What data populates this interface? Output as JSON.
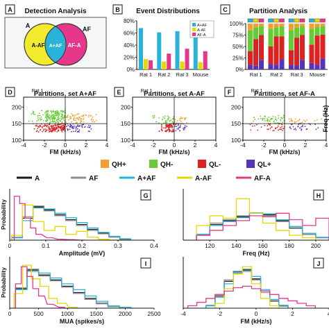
{
  "colors": {
    "A": "#1a1a1a",
    "AF": "#8c8c8c",
    "A_AF": "#2ab3d9",
    "A_minus_AF": "#e6d800",
    "AF_minus_A": "#e6378a",
    "QH_plus": "#f0a030",
    "QH_minus": "#66cc33",
    "QL_minus": "#dd2222",
    "QL_plus": "#5533bb",
    "venn_yellow": "#f2ea2e",
    "venn_cyan": "#2ab3d9",
    "venn_pink": "#e6378a"
  },
  "panels": {
    "A": {
      "letter": "A",
      "title": "Detection Analysis",
      "set_a": "A",
      "set_af": "AF",
      "left": "A-AF",
      "mid": "A+AF",
      "right": "AF-A"
    },
    "B": {
      "letter": "B",
      "title": "Event Distributions"
    },
    "C": {
      "letter": "C",
      "title": "Partition Analysis"
    },
    "D": {
      "letter": "D",
      "title": "Partitions, set A+AF",
      "rat": "Rat 1"
    },
    "E": {
      "letter": "E",
      "title": "Partitions, set A-AF",
      "rat": "Rat 1"
    },
    "F": {
      "letter": "F",
      "title": "Partitions, set AF-A",
      "rat": "Rat 1"
    },
    "G": {
      "letter": "G"
    },
    "H": {
      "letter": "H"
    },
    "I": {
      "letter": "I"
    },
    "J": {
      "letter": "J"
    }
  },
  "legend_quadrants": [
    {
      "label": "QH+",
      "color_key": "QH_plus"
    },
    {
      "label": "QH-",
      "color_key": "QH_minus"
    },
    {
      "label": "QL-",
      "color_key": "QL_minus"
    },
    {
      "label": "QL+",
      "color_key": "QL_plus"
    }
  ],
  "legend_sets": [
    {
      "label": "A",
      "color_key": "A"
    },
    {
      "label": "AF",
      "color_key": "AF"
    },
    {
      "label": "A+AF",
      "color_key": "A_AF"
    },
    {
      "label": "A-AF",
      "color_key": "A_minus_AF"
    },
    {
      "label": "AF-A",
      "color_key": "AF_minus_A"
    }
  ],
  "chart_data": [
    {
      "id": "B",
      "type": "bar",
      "title": "Event Distributions",
      "categories": [
        "Rat 1",
        "Rat 2",
        "Rat 3",
        "Mouse"
      ],
      "series": [
        {
          "name": "A+AF",
          "values": [
            68,
            61,
            63,
            58
          ]
        },
        {
          "name": "A-AF",
          "values": [
            17,
            13,
            13,
            12
          ]
        },
        {
          "name": "AF-A",
          "values": [
            15,
            26,
            34,
            30
          ]
        }
      ],
      "ylim": [
        0,
        80
      ],
      "yticks": [
        "0%",
        "20%",
        "40%",
        "60%",
        "80%"
      ]
    },
    {
      "id": "C",
      "type": "bar",
      "stacked": true,
      "title": "Partition Analysis",
      "categories": [
        "Rat 1",
        "Rat 2",
        "Rat 3",
        "Mouse"
      ],
      "segment_order": [
        "QL+",
        "QL-",
        "QH-",
        "QH+"
      ],
      "groups": [
        [
          [
            10,
            30,
            45,
            15
          ],
          [
            8,
            58,
            26,
            8
          ],
          [
            20,
            55,
            20,
            5
          ]
        ],
        [
          [
            12,
            38,
            38,
            12
          ],
          [
            10,
            62,
            20,
            8
          ],
          [
            22,
            50,
            22,
            6
          ]
        ],
        [
          [
            10,
            32,
            44,
            14
          ],
          [
            9,
            60,
            23,
            8
          ],
          [
            21,
            54,
            20,
            5
          ]
        ],
        [
          [
            14,
            40,
            34,
            12
          ],
          [
            10,
            64,
            19,
            7
          ],
          [
            24,
            52,
            18,
            6
          ]
        ]
      ],
      "ylim": [
        0,
        100
      ],
      "yticks": [
        "0%",
        "25%",
        "50%",
        "75%",
        "100%"
      ]
    },
    {
      "id": "D",
      "type": "scatter",
      "title": "Partitions, set A+AF",
      "xlabel": "FM (kHz/s)",
      "ylabel": "Freq (Hz)",
      "xlim": [
        -4,
        4
      ],
      "ylim": [
        100,
        230
      ],
      "xticks": [
        -4,
        -2,
        0,
        2,
        4
      ],
      "yticks": [
        100,
        150,
        200
      ],
      "clusters": [
        {
          "quadrant": "QH-",
          "count": 190,
          "fm_range": [
            -3.5,
            0
          ],
          "freq_range": [
            150,
            190
          ]
        },
        {
          "quadrant": "QH+",
          "count": 70,
          "fm_range": [
            0,
            3.0
          ],
          "freq_range": [
            150,
            180
          ]
        },
        {
          "quadrant": "QL-",
          "count": 170,
          "fm_range": [
            -3.0,
            0
          ],
          "freq_range": [
            125,
            150
          ]
        },
        {
          "quadrant": "QL+",
          "count": 55,
          "fm_range": [
            0,
            2.5
          ],
          "freq_range": [
            125,
            150
          ]
        }
      ]
    },
    {
      "id": "E",
      "type": "scatter",
      "title": "Partitions, set A-AF",
      "xlabel": "FM (kHz/s)",
      "xlim": [
        -4,
        4
      ],
      "ylim": [
        100,
        230
      ],
      "xticks": [
        -4,
        -2,
        0,
        2,
        4
      ],
      "yticks": [
        100,
        150,
        200
      ],
      "clusters": [
        {
          "quadrant": "QH-",
          "count": 45,
          "fm_range": [
            -2.2,
            0
          ],
          "freq_range": [
            150,
            175
          ]
        },
        {
          "quadrant": "QH+",
          "count": 20,
          "fm_range": [
            0,
            1.2
          ],
          "freq_range": [
            150,
            170
          ]
        },
        {
          "quadrant": "QL-",
          "count": 80,
          "fm_range": [
            -1.6,
            0
          ],
          "freq_range": [
            125,
            150
          ]
        },
        {
          "quadrant": "QL+",
          "count": 25,
          "fm_range": [
            0,
            1.2
          ],
          "freq_range": [
            128,
            150
          ]
        }
      ]
    },
    {
      "id": "F",
      "type": "scatter",
      "title": "Partitions, set AF-A",
      "xlabel": "FM (kHz/s)",
      "xlim": [
        -4,
        4
      ],
      "ylim": [
        100,
        230
      ],
      "xticks": [
        -4,
        -2,
        0,
        2,
        4
      ],
      "yticks": [
        100,
        150,
        200
      ],
      "clusters": [
        {
          "quadrant": "QH-",
          "count": 55,
          "fm_range": [
            -3.4,
            0
          ],
          "freq_range": [
            150,
            175
          ]
        },
        {
          "quadrant": "QH+",
          "count": 25,
          "fm_range": [
            0,
            3.6
          ],
          "freq_range": [
            150,
            165
          ]
        },
        {
          "quadrant": "QL-",
          "count": 40,
          "fm_range": [
            -3.4,
            0
          ],
          "freq_range": [
            128,
            150
          ]
        },
        {
          "quadrant": "QL+",
          "count": 30,
          "fm_range": [
            0,
            3.4
          ],
          "freq_range": [
            128,
            150
          ]
        }
      ]
    },
    {
      "id": "G",
      "type": "line",
      "step": true,
      "xlabel": "Amplitude (mV)",
      "ylabel": "Probability",
      "xlim": [
        0,
        0.4
      ],
      "xticks": [
        0,
        0.1,
        0.2,
        0.3,
        0.4
      ],
      "series": [
        {
          "name": "A",
          "x": [
            0.02,
            0.05,
            0.08,
            0.11,
            0.14,
            0.17,
            0.2,
            0.23,
            0.26,
            0.29,
            0.32
          ],
          "y": [
            0.05,
            0.45,
            0.68,
            0.62,
            0.52,
            0.42,
            0.32,
            0.22,
            0.14,
            0.07,
            0.02
          ]
        },
        {
          "name": "AF",
          "x": [
            0.02,
            0.05,
            0.08,
            0.11,
            0.14,
            0.17,
            0.2,
            0.23,
            0.26,
            0.29,
            0.32
          ],
          "y": [
            0.06,
            0.48,
            0.7,
            0.6,
            0.5,
            0.4,
            0.3,
            0.2,
            0.13,
            0.06,
            0.02
          ]
        },
        {
          "name": "A+AF",
          "x": [
            0.02,
            0.05,
            0.08,
            0.11,
            0.14,
            0.17,
            0.2,
            0.23,
            0.26,
            0.29,
            0.32
          ],
          "y": [
            0.05,
            0.4,
            0.66,
            0.64,
            0.55,
            0.46,
            0.36,
            0.25,
            0.16,
            0.08,
            0.03
          ]
        },
        {
          "name": "A-AF",
          "x": [
            0.02,
            0.05,
            0.08,
            0.11,
            0.14,
            0.17,
            0.2,
            0.23,
            0.26,
            0.29
          ],
          "y": [
            0.1,
            0.72,
            0.38,
            0.2,
            0.28,
            0.12,
            0.18,
            0.06,
            0.02,
            0.0
          ]
        },
        {
          "name": "AF-A",
          "x": [
            0.02,
            0.035,
            0.05,
            0.065,
            0.08,
            0.11,
            0.14,
            0.17,
            0.2
          ],
          "y": [
            0.9,
            0.75,
            0.45,
            0.25,
            0.12,
            0.05,
            0.02,
            0.01,
            0.0
          ]
        }
      ]
    },
    {
      "id": "H",
      "type": "line",
      "step": true,
      "xlabel": "Freq (Hz)",
      "xlim": [
        100,
        210
      ],
      "xticks": [
        120,
        140,
        160,
        180,
        200
      ],
      "series": [
        {
          "name": "A",
          "x": [
            115,
            125,
            135,
            145,
            155,
            165,
            175,
            185,
            195,
            205
          ],
          "y": [
            0.1,
            0.32,
            0.4,
            0.48,
            0.55,
            0.52,
            0.4,
            0.25,
            0.12,
            0.05
          ]
        },
        {
          "name": "AF",
          "x": [
            115,
            125,
            135,
            145,
            155,
            165,
            175,
            185,
            195,
            205
          ],
          "y": [
            0.12,
            0.35,
            0.42,
            0.5,
            0.56,
            0.5,
            0.38,
            0.24,
            0.12,
            0.05
          ]
        },
        {
          "name": "A+AF",
          "x": [
            115,
            125,
            135,
            145,
            155,
            165,
            175,
            185,
            195,
            205
          ],
          "y": [
            0.12,
            0.3,
            0.38,
            0.46,
            0.56,
            0.54,
            0.42,
            0.28,
            0.14,
            0.06
          ]
        },
        {
          "name": "A-AF",
          "x": [
            115,
            125,
            135,
            145,
            155,
            165,
            175,
            185,
            195
          ],
          "y": [
            0.3,
            0.5,
            0.45,
            0.85,
            0.55,
            0.35,
            0.2,
            0.1,
            0.05
          ]
        },
        {
          "name": "AF-A",
          "x": [
            115,
            125,
            135,
            145,
            155,
            165,
            175,
            185,
            195,
            205
          ],
          "y": [
            0.1,
            0.2,
            0.3,
            0.4,
            0.5,
            0.48,
            0.55,
            0.42,
            0.3,
            0.45
          ]
        }
      ]
    },
    {
      "id": "I",
      "type": "line",
      "step": true,
      "xlabel": "MUA (spikes/s)",
      "ylabel": "Probability",
      "xlim": [
        0,
        2500
      ],
      "xticks": [
        0,
        500,
        1000,
        1500,
        2000,
        2500
      ],
      "series": [
        {
          "name": "A",
          "x": [
            200,
            400,
            600,
            800,
            1000,
            1200,
            1400,
            1600,
            1800
          ],
          "y": [
            0.4,
            0.78,
            0.68,
            0.58,
            0.45,
            0.32,
            0.2,
            0.1,
            0.03
          ]
        },
        {
          "name": "AF",
          "x": [
            200,
            400,
            600,
            800,
            1000,
            1200,
            1400,
            1600,
            1800
          ],
          "y": [
            0.42,
            0.8,
            0.66,
            0.56,
            0.43,
            0.3,
            0.18,
            0.09,
            0.03
          ]
        },
        {
          "name": "A+AF",
          "x": [
            200,
            400,
            600,
            800,
            1000,
            1200,
            1400,
            1600,
            1800,
            2000
          ],
          "y": [
            0.38,
            0.75,
            0.72,
            0.62,
            0.5,
            0.38,
            0.25,
            0.14,
            0.05,
            0.02
          ]
        },
        {
          "name": "A-AF",
          "x": [
            150,
            300,
            450,
            600,
            750,
            900,
            1100
          ],
          "y": [
            0.3,
            0.88,
            0.6,
            0.45,
            0.2,
            0.1,
            0.02
          ]
        },
        {
          "name": "AF-A",
          "x": [
            150,
            250,
            350,
            450,
            550,
            700,
            900
          ],
          "y": [
            0.5,
            0.85,
            0.65,
            0.4,
            0.25,
            0.08,
            0.02
          ]
        }
      ]
    },
    {
      "id": "J",
      "type": "line",
      "step": true,
      "xlabel": "FM (kHz/s)",
      "xlim": [
        -4,
        4
      ],
      "xticks": [
        -4,
        -2,
        0,
        2,
        4
      ],
      "series": [
        {
          "name": "A",
          "x": [
            -2.5,
            -2.0,
            -1.5,
            -1.0,
            -0.5,
            0.0,
            0.5,
            1.0,
            1.5
          ],
          "y": [
            0.05,
            0.25,
            0.55,
            0.75,
            0.78,
            0.6,
            0.35,
            0.15,
            0.05
          ]
        },
        {
          "name": "AF",
          "x": [
            -2.5,
            -2.0,
            -1.5,
            -1.0,
            -0.5,
            0.0,
            0.5,
            1.0,
            1.5
          ],
          "y": [
            0.06,
            0.28,
            0.58,
            0.72,
            0.75,
            0.58,
            0.32,
            0.14,
            0.04
          ]
        },
        {
          "name": "A+AF",
          "x": [
            -2.5,
            -2.0,
            -1.5,
            -1.0,
            -0.5,
            0.0,
            0.5,
            1.0,
            1.5
          ],
          "y": [
            0.05,
            0.22,
            0.5,
            0.74,
            0.8,
            0.65,
            0.38,
            0.18,
            0.06
          ]
        },
        {
          "name": "A-AF",
          "x": [
            -2.0,
            -1.5,
            -1.0,
            -0.5,
            0.0,
            0.5,
            1.0
          ],
          "y": [
            0.1,
            0.4,
            0.7,
            0.85,
            0.5,
            0.2,
            0.05
          ]
        },
        {
          "name": "AF-A",
          "x": [
            -3.5,
            -3.0,
            -2.5,
            -2.0,
            -1.5,
            -1.0,
            -0.5,
            0.0,
            0.5,
            1.0,
            1.5,
            2.0,
            2.5,
            3.0
          ],
          "y": [
            0.05,
            0.12,
            0.2,
            0.28,
            0.35,
            0.42,
            0.45,
            0.4,
            0.35,
            0.28,
            0.2,
            0.15,
            0.1,
            0.05
          ]
        }
      ]
    }
  ]
}
